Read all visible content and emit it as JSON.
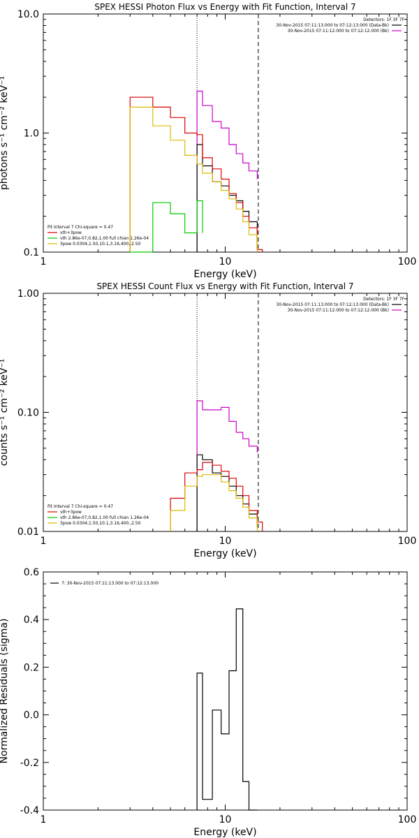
{
  "chart_data": [
    {
      "type": "line",
      "title": "SPEX HESSI Photon Flux vs Energy with Fit Function, Interval 7",
      "xlabel": "Energy (keV)",
      "ylabel": "photons s⁻¹ cm⁻² keV⁻¹",
      "xscale": "log",
      "yscale": "log",
      "xlim": [
        1,
        100
      ],
      "ylim": [
        0.1,
        10
      ],
      "xticks": [
        {
          "v": 1,
          "label": "1"
        },
        {
          "v": 10,
          "label": "10"
        },
        {
          "v": 100,
          "label": "100"
        }
      ],
      "yticks": [
        {
          "v": 0.1,
          "label": "0.1"
        },
        {
          "v": 1,
          "label": "1.0"
        },
        {
          "v": 10,
          "label": "10.0"
        }
      ],
      "vlines": [
        {
          "x": 7.0,
          "style": "dotted"
        },
        {
          "x": 15.2,
          "style": "dashed"
        }
      ],
      "legend_topright": {
        "header": "Detectors: 1F 3F 7F",
        "entries": [
          {
            "text": "30-Nov-2015 07:11:13.000 to 07:12:13.000 (Data-Bk)",
            "color": "#000000"
          },
          {
            "text": "30-Nov-2015 07:11:12.000 to 07:12:12.000 (Bk)",
            "color": "#cc00cc"
          }
        ]
      },
      "legend_bottomleft": {
        "header": "Fit Interval 7   Chi-square = 0.47",
        "entries": [
          {
            "text": "vth+3pow",
            "color": "#dd0000"
          },
          {
            "text": "vth 2.86e-07,0.82,1.00  full chian 1.26e-04",
            "color": "#00cc00"
          },
          {
            "text": "3pow 0.0304,1.50,10.1,3.16,400.,2.50",
            "color": "#ddbb00"
          }
        ]
      },
      "series": [
        {
          "color": "#cc00cc",
          "edges": [
            7,
            7.5,
            8.5,
            9.5,
            10.5,
            11.5,
            12.5,
            13.5,
            15
          ],
          "values": [
            2.25,
            1.7,
            1.25,
            1.1,
            0.8,
            0.67,
            0.56,
            0.48,
            0.41
          ]
        },
        {
          "color": "#000000",
          "edges": [
            7,
            7.5,
            8.5,
            9.5,
            10.5,
            11.5,
            12.5,
            13.5,
            15
          ],
          "values": [
            0.8,
            0.53,
            0.39,
            0.36,
            0.3,
            0.27,
            0.22,
            0.18,
            0.105
          ]
        },
        {
          "color": "#dd0000",
          "edges": [
            3,
            4,
            5,
            6,
            7,
            7.5,
            8.5,
            9.5,
            10.5,
            11.5,
            12.5,
            13.5,
            15,
            16
          ],
          "values": [
            2.0,
            1.65,
            1.35,
            1.0,
            0.97,
            0.62,
            0.5,
            0.41,
            0.31,
            0.26,
            0.2,
            0.16,
            0.105,
            0.1
          ]
        },
        {
          "color": "#00cc00",
          "edges": [
            3,
            4,
            5,
            6,
            7,
            7.5
          ],
          "values": [
            0.1,
            0.26,
            0.21,
            0.145,
            0.27,
            0.145
          ]
        },
        {
          "color": "#ddbb00",
          "edges": [
            3,
            4,
            5,
            6,
            7,
            7.5,
            8.5,
            9.5,
            10.5,
            11.5,
            12.5,
            13.5,
            15
          ],
          "values": [
            1.65,
            1.15,
            0.87,
            0.65,
            0.55,
            0.46,
            0.39,
            0.33,
            0.28,
            0.23,
            0.18,
            0.14,
            0.1
          ]
        }
      ]
    },
    {
      "type": "line",
      "title": "SPEX HESSI Count Flux vs Energy with Fit Function, Interval 7",
      "xlabel": "Energy (keV)",
      "ylabel": "counts s⁻¹ cm⁻² keV⁻¹",
      "xscale": "log",
      "yscale": "log",
      "xlim": [
        1,
        100
      ],
      "ylim": [
        0.01,
        1
      ],
      "xticks": [
        {
          "v": 1,
          "label": "1"
        },
        {
          "v": 10,
          "label": "10"
        },
        {
          "v": 100,
          "label": "100"
        }
      ],
      "yticks": [
        {
          "v": 0.01,
          "label": "0.01"
        },
        {
          "v": 0.1,
          "label": "0.10"
        },
        {
          "v": 1,
          "label": "1.00"
        }
      ],
      "vlines": [
        {
          "x": 7.0,
          "style": "dotted"
        },
        {
          "x": 15.2,
          "style": "dashed"
        }
      ],
      "legend_topright": {
        "header": "Detectors: 1F 3F 7F",
        "entries": [
          {
            "text": "30-Nov-2015 07:11:13.000 to 07:12:13.000 (Data-Bk)",
            "color": "#000000"
          },
          {
            "text": "30-Nov-2015 07:11:12.000 to 07:12:12.000 (Bk)",
            "color": "#cc00cc"
          }
        ]
      },
      "legend_bottomleft": {
        "header": "Fit Interval 7   Chi-square = 0.47",
        "entries": [
          {
            "text": "vth+3pow",
            "color": "#dd0000"
          },
          {
            "text": "vth 2.86e-07,0.82,1.00  full chian 1.26e-04",
            "color": "#00cc00"
          },
          {
            "text": "3pow 0.0304,1.50,10.1,3.16,400.,2.50",
            "color": "#ddbb00"
          }
        ]
      },
      "series": [
        {
          "color": "#cc00cc",
          "edges": [
            7,
            7.5,
            8.5,
            9.5,
            10.5,
            11.5,
            12.5,
            13.5,
            15
          ],
          "values": [
            0.125,
            0.105,
            0.105,
            0.11,
            0.084,
            0.068,
            0.06,
            0.052,
            0.046
          ]
        },
        {
          "color": "#000000",
          "edges": [
            7,
            7.5,
            8.5,
            9.5,
            10.5,
            11.5,
            12.5,
            13.5,
            15
          ],
          "values": [
            0.044,
            0.04,
            0.031,
            0.029,
            0.024,
            0.02,
            0.017,
            0.014,
            0.011
          ]
        },
        {
          "color": "#dd0000",
          "edges": [
            5,
            6,
            7,
            7.5,
            8.5,
            9.5,
            10.5,
            11.5,
            12.5,
            13.5,
            15,
            16
          ],
          "values": [
            0.019,
            0.031,
            0.033,
            0.038,
            0.036,
            0.032,
            0.028,
            0.024,
            0.02,
            0.015,
            0.012,
            0.01
          ]
        },
        {
          "color": "#ddbb00",
          "edges": [
            5,
            6,
            7,
            7.5,
            8.5,
            9.5,
            10.5,
            11.5,
            12.5,
            13.5,
            15
          ],
          "values": [
            0.015,
            0.024,
            0.029,
            0.03,
            0.03,
            0.026,
            0.022,
            0.019,
            0.016,
            0.013,
            0.01
          ]
        }
      ]
    },
    {
      "type": "line",
      "title": "",
      "xlabel": "Energy (keV)",
      "ylabel": "Normalized Residuals (sigma)",
      "xscale": "log",
      "yscale": "linear",
      "xlim": [
        1,
        100
      ],
      "ylim": [
        -0.4,
        0.6
      ],
      "xticks": [
        {
          "v": 1,
          "label": "1"
        },
        {
          "v": 10,
          "label": "10"
        },
        {
          "v": 100,
          "label": "100"
        }
      ],
      "yticks": [
        {
          "v": -0.4,
          "label": "-0.4"
        },
        {
          "v": -0.2,
          "label": "-0.2"
        },
        {
          "v": 0.0,
          "label": "0.0"
        },
        {
          "v": 0.2,
          "label": "0.2"
        },
        {
          "v": 0.4,
          "label": "0.4"
        },
        {
          "v": 0.6,
          "label": "0.6"
        }
      ],
      "legend_topleft": {
        "entries": [
          {
            "text": "7: 30-Nov-2015 07:11:13.000 to 07:12:13.000",
            "color": "#000000"
          }
        ]
      },
      "series": [
        {
          "color": "#000000",
          "edges": [
            7,
            7.5,
            8.5,
            9.5,
            10.5,
            11.5,
            12.5,
            13.5,
            15
          ],
          "values": [
            0.175,
            -0.355,
            0.02,
            -0.08,
            0.185,
            0.445,
            -0.28,
            -0.4
          ]
        }
      ]
    }
  ]
}
